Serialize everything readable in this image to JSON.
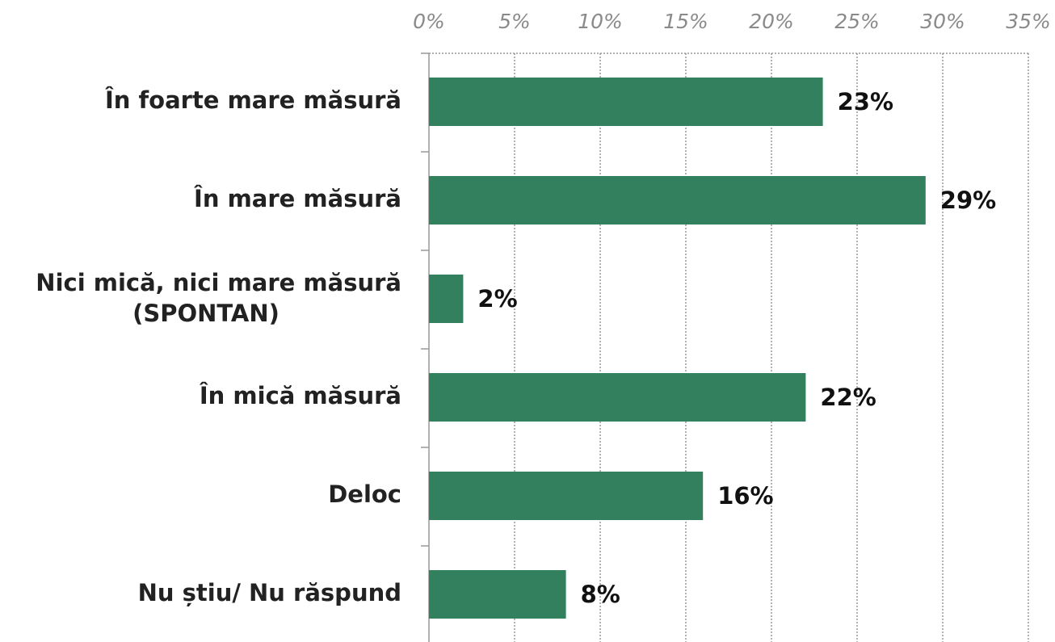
{
  "chart_data": {
    "type": "bar",
    "orientation": "horizontal",
    "categories": [
      "În foarte mare măsură",
      "În mare măsură",
      "Nici mică, nici mare măsură (SPONTAN)",
      "În mică măsură",
      "Deloc",
      "Nu știu/ Nu răspund"
    ],
    "values": [
      23,
      29,
      2,
      22,
      16,
      8
    ],
    "value_labels": [
      "23%",
      "29%",
      "2%",
      "22%",
      "16%",
      "8%"
    ],
    "color": "#33805f",
    "xlim": [
      0,
      35
    ],
    "xticks": [
      {
        "value": 0,
        "label": "0%"
      },
      {
        "value": 5,
        "label": "5%"
      },
      {
        "value": 10,
        "label": "10%"
      },
      {
        "value": 15,
        "label": "15%"
      },
      {
        "value": 20,
        "label": "20%"
      },
      {
        "value": 25,
        "label": "25%"
      },
      {
        "value": 30,
        "label": "30%"
      },
      {
        "value": 35,
        "label": "35%"
      }
    ],
    "grid": true
  }
}
